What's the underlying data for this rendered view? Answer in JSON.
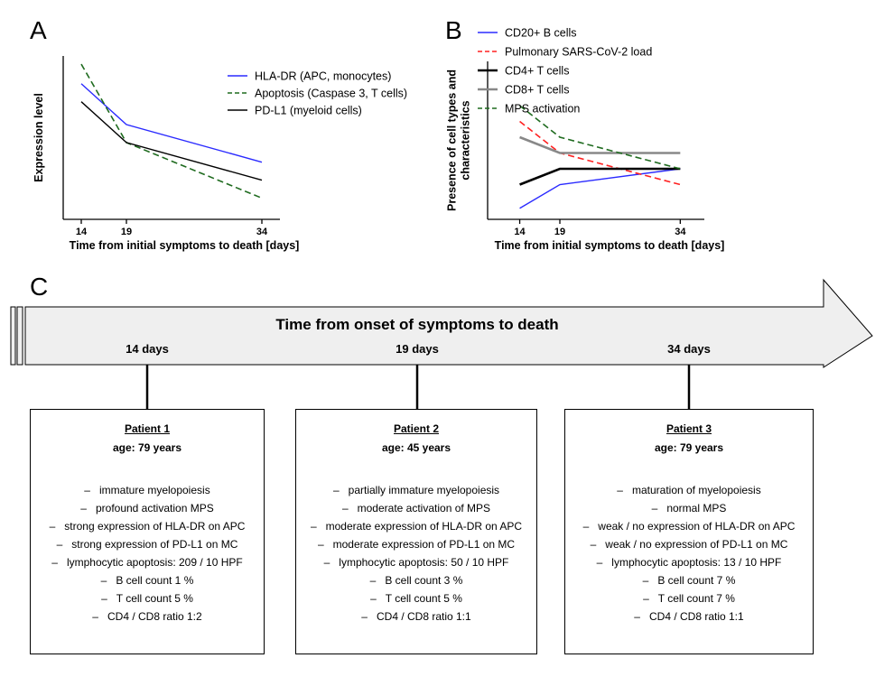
{
  "panels": {
    "a": "A",
    "b": "B",
    "c": "C"
  },
  "chart_data": [
    {
      "type": "line",
      "panel": "A",
      "xlabel": "Time from initial symptoms to death [days]",
      "ylabel": "Expression level",
      "x": [
        14,
        19,
        34
      ],
      "xticks": [
        "14",
        "19",
        "34"
      ],
      "xlim": [
        12,
        36
      ],
      "ylim": [
        0,
        1
      ],
      "legend_position": "top-right",
      "series": [
        {
          "name": "HLA-DR (APC, monocytes)",
          "values": [
            0.83,
            0.58,
            0.35
          ],
          "color": "#2b2bff",
          "dash": "solid"
        },
        {
          "name": "Apoptosis (Caspase 3, T cells)",
          "values": [
            0.95,
            0.47,
            0.13
          ],
          "color": "#1f6b1f",
          "dash": "dashed"
        },
        {
          "name": "PD-L1 (myeloid cells)",
          "values": [
            0.72,
            0.47,
            0.24
          ],
          "color": "#000000",
          "dash": "solid"
        }
      ]
    },
    {
      "type": "line",
      "panel": "B",
      "xlabel": "Time from initial symptoms to death [days]",
      "ylabel": "Presence of cell types and characteristics",
      "x": [
        14,
        19,
        34
      ],
      "xticks": [
        "14",
        "19",
        "34"
      ],
      "xlim": [
        10,
        37
      ],
      "ylim": [
        0,
        1
      ],
      "legend_position": "top-right",
      "series": [
        {
          "name": "CD20+ B cells",
          "values": [
            0.07,
            0.22,
            0.32
          ],
          "color": "#2b2bff",
          "dash": "solid"
        },
        {
          "name": "Pulmonary SARS-CoV-2 load",
          "values": [
            0.62,
            0.42,
            0.22
          ],
          "color": "#ff2020",
          "dash": "dashed"
        },
        {
          "name": "CD4+ T cells",
          "values": [
            0.22,
            0.32,
            0.32
          ],
          "color": "#000000",
          "dash": "solid-bold"
        },
        {
          "name": "CD8+ T cells",
          "values": [
            0.52,
            0.42,
            0.42
          ],
          "color": "#888888",
          "dash": "solid-bold"
        },
        {
          "name": "MPS activation",
          "values": [
            0.72,
            0.52,
            0.32
          ],
          "color": "#1f6b1f",
          "dash": "dashed"
        }
      ]
    }
  ],
  "timeline": {
    "title": "Time from onset of symptoms to death",
    "points": [
      "14 days",
      "19 days",
      "34 days"
    ]
  },
  "patients": [
    {
      "name": "Patient 1",
      "age": "age: 79 years",
      "findings": [
        "immature myelopoiesis",
        "profound activation MPS",
        "strong expression of HLA-DR on APC",
        "strong expression of PD-L1 on MC",
        "lymphocytic apoptosis: 209 / 10 HPF",
        "B cell count 1 %",
        "T cell count 5 %",
        "CD4 / CD8 ratio 1:2"
      ]
    },
    {
      "name": "Patient 2",
      "age": "age: 45 years",
      "findings": [
        "partially immature myelopoiesis",
        "moderate activation of MPS",
        "moderate expression of HLA-DR on APC",
        "moderate expression of PD-L1 on MC",
        "lymphocytic apoptosis: 50 / 10 HPF",
        "B cell count 3 %",
        "T cell count 5 %",
        "CD4 / CD8 ratio 1:1"
      ]
    },
    {
      "name": "Patient 3",
      "age": "age: 79 years",
      "findings": [
        "maturation of myelopoiesis",
        "normal MPS",
        "weak / no expression of HLA-DR on APC",
        "weak / no expression of PD-L1 on MC",
        "lymphocytic apoptosis: 13 / 10 HPF",
        "B cell count 7 %",
        "T cell count 7 %",
        "CD4 / CD8 ratio 1:1"
      ]
    }
  ],
  "dash_symbol": "–"
}
